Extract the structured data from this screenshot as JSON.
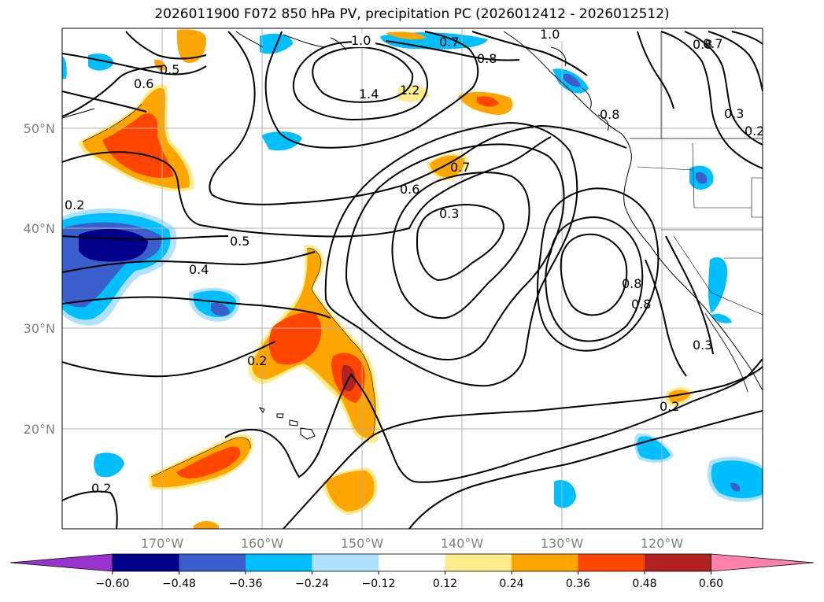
{
  "title": "2026011900 F072 850 hPa PV, precipitation PC (2026012412 - 2026012512)",
  "latitude_labels": [
    "50°N",
    "40°N",
    "30°N",
    "20°N"
  ],
  "longitude_labels": [
    "170°W",
    "160°W",
    "150°W",
    "140°W",
    "130°W",
    "120°W"
  ],
  "colorbar": {
    "tick_labels": [
      "−0.60",
      "−0.48",
      "−0.36",
      "−0.24",
      "−0.12",
      "0.12",
      "0.24",
      "0.36",
      "0.48",
      "0.60"
    ],
    "colors": [
      "#9a32cd",
      "#00008b",
      "#3a5fcd",
      "#00bfff",
      "#b0e2ff",
      "#ffffff",
      "#ffec8b",
      "#ffa500",
      "#ff4500",
      "#b22222",
      "#ff82ab"
    ]
  },
  "contour_labels": [
    "1.0",
    "0.7",
    "1.0",
    "0.8",
    "0.7",
    "0.8",
    "0.5",
    "0.6",
    "1.4",
    "1.2",
    "0.8",
    "0.3",
    "0.2",
    "0.7",
    "0.6",
    "0.3",
    "0.2",
    "0.5",
    "0.4",
    "0.8",
    "0.8",
    "0.3",
    "0.2",
    "0.2",
    "0.2"
  ]
}
